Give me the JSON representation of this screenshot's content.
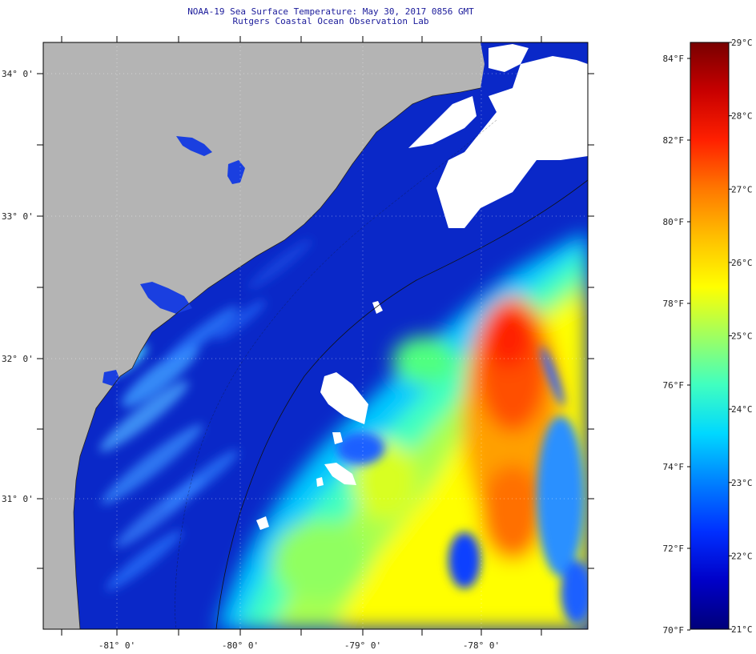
{
  "title": {
    "line1": "NOAA-19 Sea Surface Temperature:  May 30, 2017 0856 GMT",
    "line2": "Rutgers Coastal Ocean Observation Lab"
  },
  "map": {
    "lat_labels": [
      "34° 0'",
      "33° 0'",
      "32° 0'",
      "31° 0'"
    ],
    "lon_labels": [
      "-81° 0'",
      "-80° 0'",
      "-79° 0'",
      "-78° 0'"
    ],
    "land_color": "#b4b4b4",
    "cloud_color": "#ffffff",
    "ocean_base_color": "#0a28c8"
  },
  "color_scale": {
    "colors": [
      "#00007a",
      "#0000c8",
      "#0030ff",
      "#0080ff",
      "#00d8ff",
      "#40ffc0",
      "#a0ff60",
      "#ffff00",
      "#ffc000",
      "#ff7800",
      "#ff2000",
      "#c80000",
      "#780000"
    ],
    "fahrenheit_labels": [
      "84°F",
      "82°F",
      "80°F",
      "78°F",
      "76°F",
      "74°F",
      "72°F",
      "70°F"
    ],
    "celsius_labels": [
      "29°C",
      "28°C",
      "27°C",
      "26°C",
      "25°C",
      "24°C",
      "23°C",
      "22°C",
      "21°C"
    ]
  }
}
